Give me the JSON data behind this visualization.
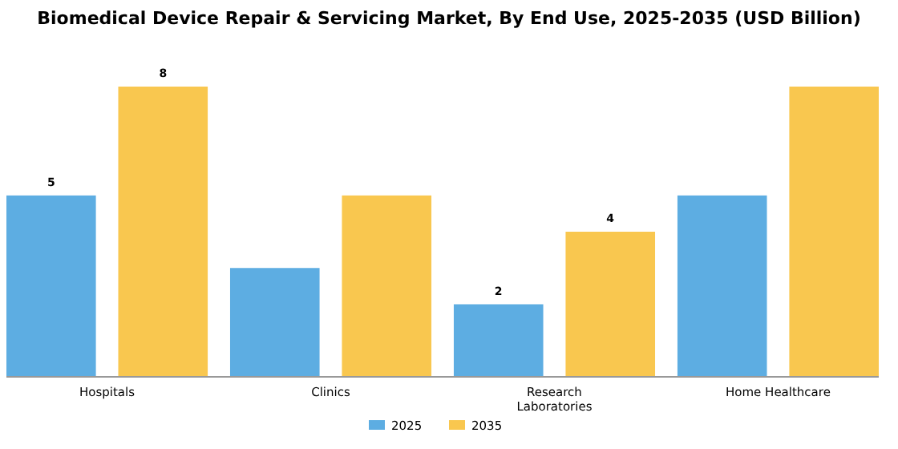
{
  "chart_data": {
    "type": "bar",
    "title": "Biomedical Device Repair & Servicing Market, By End Use, 2025-2035 (USD Billion)",
    "categories": [
      "Hospitals",
      "Clinics",
      "Research Laboratories",
      "Home Healthcare"
    ],
    "series": [
      {
        "name": "2025",
        "color": "#5dade2",
        "values": [
          5,
          3,
          2,
          5
        ],
        "value_labels": [
          "5",
          null,
          "2",
          null
        ]
      },
      {
        "name": "2035",
        "color": "#f9c74f",
        "values": [
          8,
          5,
          4,
          8
        ],
        "value_labels": [
          "8",
          null,
          "4",
          null
        ]
      }
    ],
    "legend": "bottom"
  }
}
